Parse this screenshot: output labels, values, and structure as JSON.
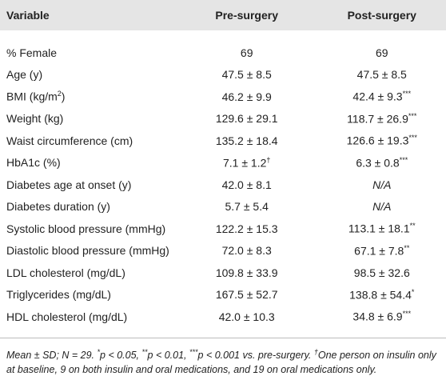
{
  "table": {
    "header": [
      "Variable",
      "Pre-surgery",
      "Post-surgery"
    ],
    "rows": [
      [
        "% Female",
        "69",
        "69"
      ],
      [
        "Age (y)",
        "47.5 ± 8.5",
        "47.5 ± 8.5"
      ],
      [
        {
          "text": "BMI (kg/m",
          "sup": "2",
          "tail": ")"
        },
        "46.2 ± 9.9",
        {
          "text": "42.4 ± 9.3",
          "sup": "***"
        }
      ],
      [
        "Weight (kg)",
        "129.6 ± 29.1",
        {
          "text": "118.7 ± 26.9",
          "sup": "***"
        }
      ],
      [
        "Waist circumference (cm)",
        "135.2 ± 18.4",
        {
          "text": "126.6 ± 19.3",
          "sup": "***"
        }
      ],
      [
        "HbA1c (%)",
        {
          "text": "7.1 ± 1.2",
          "sup": "†"
        },
        {
          "text": "6.3 ± 0.8",
          "sup": "***"
        }
      ],
      [
        "Diabetes age at onset (y)",
        "42.0 ± 8.1",
        {
          "text": "N/A",
          "style": "italic"
        }
      ],
      [
        "Diabetes duration (y)",
        "5.7 ± 5.4",
        {
          "text": "N/A",
          "style": "italic"
        }
      ],
      [
        "Systolic blood pressure (mmHg)",
        "122.2 ± 15.3",
        {
          "text": "113.1 ± 18.1",
          "sup": "**"
        }
      ],
      [
        "Diastolic blood pressure (mmHg)",
        "72.0 ± 8.3",
        {
          "text": "67.1 ± 7.8",
          "sup": "**"
        }
      ],
      [
        "LDL cholesterol (mg/dL)",
        "109.8 ± 33.9",
        "98.5 ± 32.6"
      ],
      [
        "Triglycerides (mg/dL)",
        "167.5 ± 52.7",
        {
          "text": "138.8 ± 54.4",
          "sup": "*"
        }
      ],
      [
        "HDL cholesterol (mg/dL)",
        "42.0 ± 10.3",
        {
          "text": "34.8 ± 6.9",
          "sup": "***"
        }
      ]
    ],
    "footnote": [
      {
        "text": "Mean ± SD; N = 29. "
      },
      {
        "sup": "*"
      },
      {
        "text": "p < 0.05, "
      },
      {
        "sup": "**"
      },
      {
        "text": "p < 0.01, "
      },
      {
        "sup": "***"
      },
      {
        "text": "p < 0.001 vs. pre-surgery. "
      },
      {
        "sup": "†"
      },
      {
        "text": "One person on insulin only at baseline, 9 on both insulin and oral medications, and 19 on oral medications only."
      }
    ]
  }
}
